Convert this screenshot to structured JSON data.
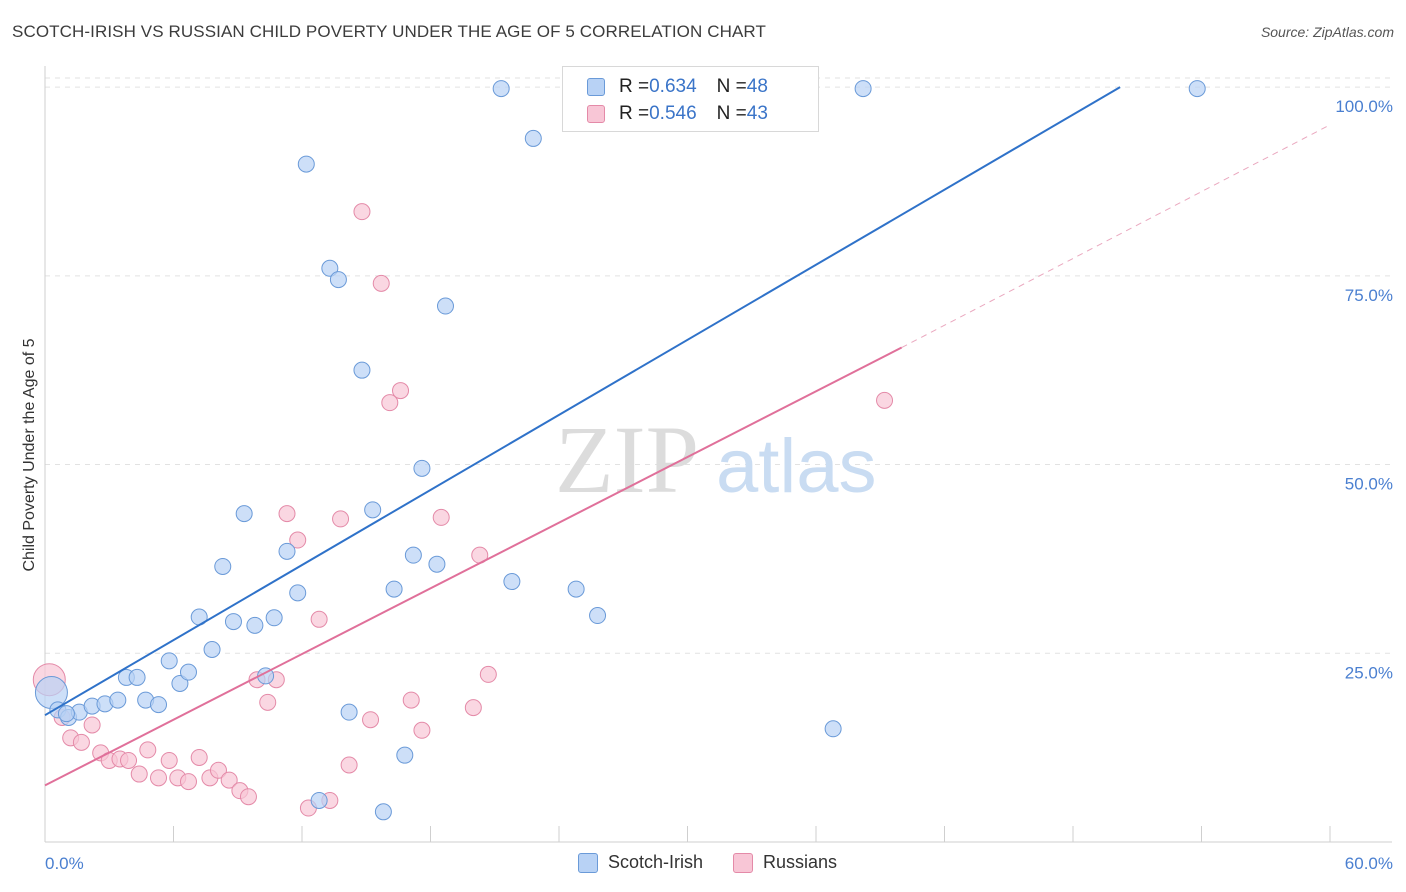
{
  "title": "SCOTCH-IRISH VS RUSSIAN CHILD POVERTY UNDER THE AGE OF 5 CORRELATION CHART",
  "source": "Source: ZipAtlas.com",
  "watermark": {
    "part1": "ZIP",
    "part2": "atlas"
  },
  "colors": {
    "scotch_fill": "#b8d2f5",
    "scotch_stroke": "#6a9ad8",
    "scotch_line": "#2f72c9",
    "russian_fill": "#f8c6d6",
    "russian_stroke": "#e48aa8",
    "russian_line": "#e0709a",
    "grid": "#e2e2e2",
    "tick_label": "#4a7fd0"
  },
  "legend_top": [
    {
      "r_label": "R = ",
      "r_value": "0.634",
      "n_label": "N = ",
      "n_value": "48"
    },
    {
      "r_label": "R = ",
      "r_value": "0.546",
      "n_label": "N = ",
      "n_value": "43"
    }
  ],
  "chart_data": {
    "type": "scatter",
    "title": "SCOTCH-IRISH VS RUSSIAN CHILD POVERTY UNDER THE AGE OF 5 CORRELATION CHART",
    "xlabel": "",
    "ylabel": "Child Poverty Under the Age of 5",
    "xlim": [
      0,
      60
    ],
    "ylim": [
      0,
      102
    ],
    "x_tick_labels": [
      "0.0%",
      "60.0%"
    ],
    "y_ticks": [
      25,
      50,
      75,
      100
    ],
    "y_tick_labels": [
      "25.0%",
      "50.0%",
      "75.0%",
      "100.0%"
    ],
    "grid": true,
    "legend_position": "bottom-center",
    "series": [
      {
        "name": "Scotch-Irish",
        "r": 0.634,
        "n": 48,
        "trend": {
          "x": [
            0,
            50.2
          ],
          "y": [
            16.8,
            100
          ]
        },
        "points": [
          [
            0.3,
            19.8
          ],
          [
            0.6,
            17.5
          ],
          [
            1.1,
            16.5
          ],
          [
            1.6,
            17.2
          ],
          [
            2.2,
            18.0
          ],
          [
            2.8,
            18.3
          ],
          [
            3.4,
            18.8
          ],
          [
            3.8,
            21.8
          ],
          [
            4.3,
            21.8
          ],
          [
            4.7,
            18.8
          ],
          [
            5.3,
            18.2
          ],
          [
            5.8,
            24.0
          ],
          [
            6.3,
            21.0
          ],
          [
            6.7,
            22.5
          ],
          [
            7.2,
            29.8
          ],
          [
            7.8,
            25.5
          ],
          [
            8.3,
            36.5
          ],
          [
            8.8,
            29.2
          ],
          [
            9.3,
            43.5
          ],
          [
            9.8,
            28.7
          ],
          [
            10.3,
            22.0
          ],
          [
            10.7,
            29.7
          ],
          [
            11.3,
            38.5
          ],
          [
            11.8,
            33.0
          ],
          [
            12.2,
            89.8
          ],
          [
            12.8,
            5.5
          ],
          [
            13.3,
            76.0
          ],
          [
            13.7,
            74.5
          ],
          [
            14.2,
            17.2
          ],
          [
            14.8,
            62.5
          ],
          [
            15.3,
            44.0
          ],
          [
            15.8,
            4.0
          ],
          [
            16.3,
            33.5
          ],
          [
            16.8,
            11.5
          ],
          [
            17.2,
            38.0
          ],
          [
            17.6,
            49.5
          ],
          [
            18.3,
            36.8
          ],
          [
            18.7,
            71.0
          ],
          [
            21.3,
            99.8
          ],
          [
            21.8,
            34.5
          ],
          [
            22.8,
            93.2
          ],
          [
            24.8,
            33.5
          ],
          [
            25.8,
            30.0
          ],
          [
            30.2,
            99.8
          ],
          [
            36.8,
            15.0
          ],
          [
            38.2,
            99.8
          ],
          [
            53.8,
            99.8
          ],
          [
            1.0,
            17.0
          ]
        ]
      },
      {
        "name": "Russians",
        "r": 0.546,
        "n": 43,
        "trend": {
          "x": [
            0,
            40.0
          ],
          "y": [
            7.5,
            65.5
          ]
        },
        "trend_dashed": {
          "x": [
            40.0,
            60.0
          ],
          "y": [
            65.5,
            95.0
          ]
        },
        "points": [
          [
            0.2,
            21.5
          ],
          [
            0.8,
            16.5
          ],
          [
            1.2,
            13.8
          ],
          [
            1.7,
            13.2
          ],
          [
            2.2,
            15.5
          ],
          [
            2.6,
            11.8
          ],
          [
            3.0,
            10.8
          ],
          [
            3.5,
            11.0
          ],
          [
            3.9,
            10.8
          ],
          [
            4.4,
            9.0
          ],
          [
            4.8,
            12.2
          ],
          [
            5.3,
            8.5
          ],
          [
            5.8,
            10.8
          ],
          [
            6.2,
            8.5
          ],
          [
            6.7,
            8.0
          ],
          [
            7.2,
            11.2
          ],
          [
            7.7,
            8.5
          ],
          [
            8.1,
            9.5
          ],
          [
            8.6,
            8.2
          ],
          [
            9.1,
            6.8
          ],
          [
            9.5,
            6.0
          ],
          [
            9.9,
            21.5
          ],
          [
            10.4,
            18.5
          ],
          [
            10.8,
            21.5
          ],
          [
            11.3,
            43.5
          ],
          [
            11.8,
            40.0
          ],
          [
            12.3,
            4.5
          ],
          [
            12.8,
            29.5
          ],
          [
            13.3,
            5.5
          ],
          [
            13.8,
            42.8
          ],
          [
            14.2,
            10.2
          ],
          [
            14.8,
            83.5
          ],
          [
            15.2,
            16.2
          ],
          [
            15.7,
            74.0
          ],
          [
            16.1,
            58.2
          ],
          [
            16.6,
            59.8
          ],
          [
            17.1,
            18.8
          ],
          [
            17.6,
            14.8
          ],
          [
            18.5,
            43.0
          ],
          [
            20.0,
            17.8
          ],
          [
            20.3,
            38.0
          ],
          [
            20.7,
            22.2
          ],
          [
            39.2,
            58.5
          ]
        ]
      }
    ]
  }
}
